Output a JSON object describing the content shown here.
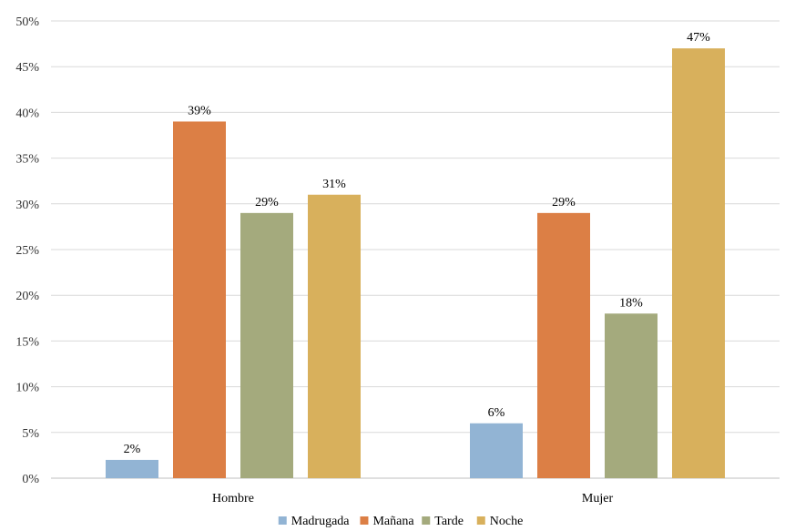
{
  "chart_data": {
    "type": "bar",
    "categories": [
      "Hombre",
      "Mujer"
    ],
    "series": [
      {
        "name": "Madrugada",
        "color": "#92b4d4",
        "values": [
          2,
          6
        ],
        "labels": [
          "2%",
          "6%"
        ]
      },
      {
        "name": "Mañana",
        "color": "#dc7f45",
        "values": [
          39,
          29
        ],
        "labels": [
          "39%",
          "29%"
        ]
      },
      {
        "name": "Tarde",
        "color": "#a4aa7d",
        "values": [
          29,
          18
        ],
        "labels": [
          "29%",
          "18%"
        ]
      },
      {
        "name": "Noche",
        "color": "#d8b05c",
        "values": [
          31,
          47
        ],
        "labels": [
          "31%",
          "47%"
        ]
      }
    ],
    "ylim": [
      0,
      50
    ],
    "yticks": [
      0,
      5,
      10,
      15,
      20,
      25,
      30,
      35,
      40,
      45,
      50
    ],
    "ytick_labels": [
      "0%",
      "5%",
      "10%",
      "15%",
      "20%",
      "25%",
      "30%",
      "35%",
      "40%",
      "45%",
      "50%"
    ],
    "grid": true,
    "legend": "bottom"
  }
}
